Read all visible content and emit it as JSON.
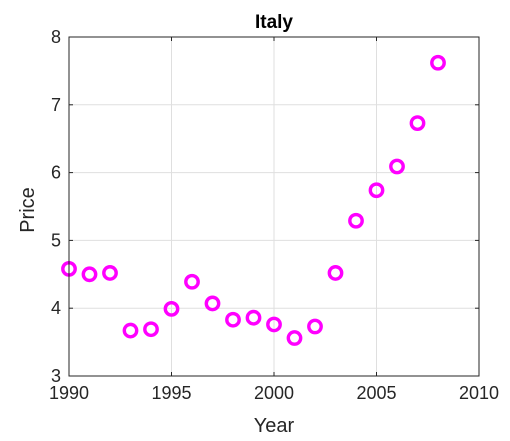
{
  "chart_data": {
    "type": "scatter",
    "title": "Italy",
    "xlabel": "Year",
    "ylabel": "Price",
    "xlim": [
      1990,
      2010
    ],
    "ylim": [
      3,
      8
    ],
    "xticks": [
      1990,
      1995,
      2000,
      2005,
      2010
    ],
    "yticks": [
      3,
      4,
      5,
      6,
      7,
      8
    ],
    "grid": true,
    "legend": "none",
    "marker": "circle-open",
    "color": "#ff00ff",
    "series": [
      {
        "x": [
          1990,
          1991,
          1992,
          1993,
          1994,
          1995,
          1996,
          1997,
          1998,
          1999,
          2000,
          2001,
          2002,
          2003,
          2004,
          2005,
          2006,
          2007,
          2008
        ],
        "y": [
          4.58,
          4.5,
          4.52,
          3.67,
          3.69,
          3.99,
          4.39,
          4.07,
          3.83,
          3.86,
          3.76,
          3.56,
          3.73,
          4.52,
          5.29,
          5.74,
          6.09,
          6.73,
          7.62
        ]
      }
    ]
  }
}
